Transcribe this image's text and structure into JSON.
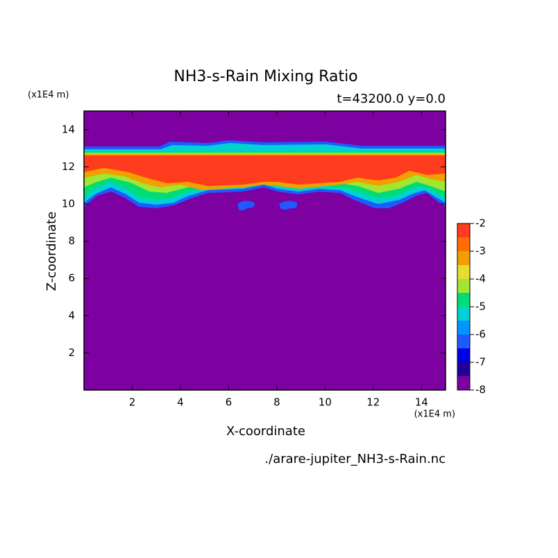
{
  "chart_data": {
    "type": "contour",
    "title": "NH3-s-Rain Mixing Ratio",
    "subtitle": "t=43200.0 y=0.0",
    "x_label": "X-coordinate",
    "y_label": "Z-coordinate",
    "x_unit": "(x1E4 m)",
    "y_unit": "(x1E4 m)",
    "file": "./arare-jupiter_NH3-s-Rain.nc",
    "xlim": [
      0,
      15
    ],
    "ylim": [
      0,
      15
    ],
    "xticks": [
      2,
      4,
      6,
      8,
      10,
      12,
      14
    ],
    "yticks": [
      2,
      4,
      6,
      8,
      10,
      12,
      14
    ],
    "colorbar": {
      "levels": [
        -8,
        -7.5,
        -7,
        -6.5,
        -6,
        -5.5,
        -5,
        -4.5,
        -4,
        -3.5,
        -3,
        -2.5,
        -2
      ],
      "ticks": [
        -8,
        -7,
        -6,
        -5,
        -4,
        -3,
        -2
      ],
      "colors": [
        "#7d00a0",
        "#1e0096",
        "#0000e6",
        "#1e5aff",
        "#0096ff",
        "#00d2d2",
        "#00dc78",
        "#a0e632",
        "#e6dc32",
        "#f0a000",
        "#ff6e00",
        "#ff3c1e",
        "#ffaaaa"
      ]
    }
  }
}
